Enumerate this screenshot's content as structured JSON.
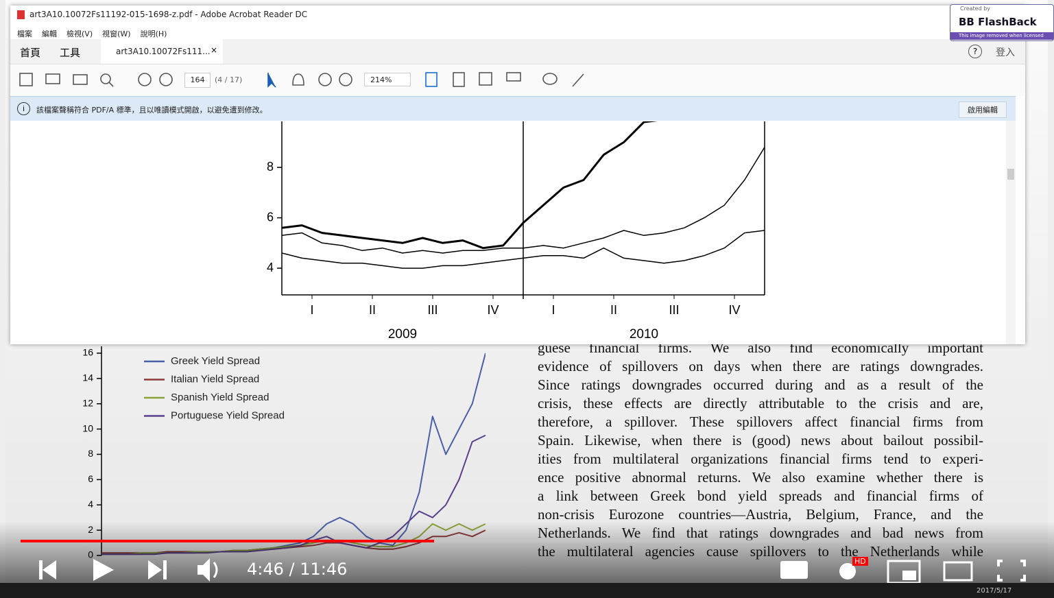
{
  "window": {
    "title": "art3A10.10072Fs11192-015-1698-z.pdf - Adobe Acrobat Reader DC",
    "menu": [
      "檔案",
      "編輯",
      "檢視(V)",
      "視窗(W)",
      "說明(H)"
    ],
    "tabs": [
      "首頁",
      "工具",
      "art3A10.10072Fs111..."
    ],
    "sign_in": "登入",
    "page_number": "164",
    "page_count": "(4 / 17)",
    "zoom": "214%",
    "notice": "該檔案聲稱符合 PDF/A 標準，且以唯讀模式開啟，以避免遭到修改。",
    "enable_editing": "啟用編輯"
  },
  "watermark": {
    "line1": "Created by",
    "brand": "BB FlashBack",
    "line2": "This image removed when licensed"
  },
  "document_lines": [
    "guese financial firms. We also find economically important",
    "evidence of spillovers on days when there are ratings downgrades.",
    "Since ratings downgrades occurred during and as a result of the",
    "crisis, these effects are directly attributable to the crisis and are,",
    "therefore, a spillover. These spillovers affect financial firms from",
    "Spain. Likewise, when there is (good) news about bailout possibil-",
    "ities from multilateral organizations financial firms tend to experi-",
    "ence positive abnormal returns. We also examine whether there is",
    "a link between Greek bond yield spreads and financial firms of",
    "non-crisis Eurozone countries—Austria, Belgium, France, and the",
    "Netherlands. We find that ratings downgrades and bad news from",
    "the multilateral agencies cause spillovers to the Netherlands while"
  ],
  "player": {
    "time": "4:46 / 11:46",
    "hd": "HD",
    "date": "2017/5/17"
  },
  "chart_data": [
    {
      "type": "line",
      "x": [
        0,
        1,
        2,
        3,
        4,
        5,
        6,
        7,
        8,
        9,
        10,
        11,
        12,
        13,
        14,
        15,
        16,
        17,
        18,
        19,
        20,
        21,
        22,
        23,
        24
      ],
      "xlim": [
        0,
        24
      ],
      "xticks": [
        {
          "value": 1.5,
          "label": "I"
        },
        {
          "value": 4.5,
          "label": "II"
        },
        {
          "value": 7.5,
          "label": "III"
        },
        {
          "value": 10.5,
          "label": "IV"
        },
        {
          "value": 13.5,
          "label": "I"
        },
        {
          "value": 16.5,
          "label": "II"
        },
        {
          "value": 19.5,
          "label": "III"
        },
        {
          "value": 22.5,
          "label": "IV"
        }
      ],
      "annotations": [
        {
          "text": "2009",
          "x": 6
        },
        {
          "text": "2010",
          "x": 18
        }
      ],
      "ylim": [
        2.94,
        9.5
      ],
      "yticks": [
        4,
        6,
        8
      ],
      "series": [
        {
          "color": "#000000",
          "linewidth": 3,
          "values": [
            5.6,
            5.7,
            5.4,
            5.3,
            5.2,
            5.1,
            5.0,
            5.2,
            5.0,
            5.1,
            4.8,
            4.9,
            5.8,
            6.5,
            7.2,
            7.5,
            8.5,
            9.0,
            9.8,
            9.9,
            9.9,
            9.9,
            9.9,
            9.9,
            9.9
          ]
        },
        {
          "color": "#000000",
          "linewidth": 1.5,
          "values": [
            5.3,
            5.4,
            5.0,
            4.9,
            4.7,
            4.8,
            4.6,
            4.7,
            4.6,
            4.7,
            4.7,
            4.8,
            4.8,
            4.9,
            4.8,
            5.0,
            5.2,
            5.5,
            5.3,
            5.4,
            5.6,
            6.0,
            6.5,
            7.5,
            8.8
          ]
        },
        {
          "color": "#000000",
          "linewidth": 1.5,
          "values": [
            4.6,
            4.4,
            4.3,
            4.2,
            4.2,
            4.1,
            4.0,
            4.0,
            4.1,
            4.1,
            4.2,
            4.3,
            4.4,
            4.5,
            4.5,
            4.4,
            4.8,
            4.4,
            4.3,
            4.2,
            4.3,
            4.5,
            4.8,
            5.4,
            5.5
          ]
        }
      ]
    },
    {
      "type": "line",
      "x": [
        0,
        1,
        2,
        3,
        4,
        5,
        6,
        7,
        8,
        9,
        10,
        11,
        12,
        13,
        14,
        15,
        16,
        17,
        18,
        19,
        20,
        21,
        22,
        23,
        24,
        25,
        26,
        27,
        28,
        29
      ],
      "xlim": [
        0,
        29
      ],
      "ylim": [
        0,
        16
      ],
      "yticks": [
        0,
        2,
        4,
        6,
        8,
        10,
        12,
        14,
        16
      ],
      "legend": "upper left",
      "series": [
        {
          "name": "Greek Yield Spread",
          "color": "#4a5fa8",
          "values": [
            0.1,
            0.1,
            0.1,
            0.1,
            0.2,
            0.2,
            0.2,
            0.2,
            0.3,
            0.3,
            0.3,
            0.4,
            0.5,
            0.6,
            0.8,
            1.0,
            1.5,
            2.5,
            3.0,
            2.5,
            1.5,
            1.0,
            0.8,
            2.0,
            5.0,
            11.0,
            8.0,
            10.0,
            12.0,
            16.0
          ]
        },
        {
          "name": "Italian Yield Spread",
          "color": "#8b3a3a",
          "values": [
            0.2,
            0.2,
            0.2,
            0.2,
            0.2,
            0.3,
            0.3,
            0.3,
            0.3,
            0.3,
            0.4,
            0.4,
            0.5,
            0.5,
            0.6,
            0.7,
            0.8,
            1.0,
            1.0,
            0.8,
            0.6,
            0.5,
            0.5,
            0.7,
            1.0,
            1.5,
            1.5,
            1.8,
            1.5,
            2.0
          ]
        },
        {
          "name": "Spanish Yield Spread",
          "color": "#8aa33a",
          "values": [
            0.1,
            0.1,
            0.1,
            0.2,
            0.2,
            0.2,
            0.2,
            0.3,
            0.3,
            0.3,
            0.4,
            0.4,
            0.5,
            0.6,
            0.7,
            0.8,
            1.0,
            1.2,
            1.2,
            1.0,
            0.8,
            0.7,
            0.7,
            1.0,
            1.5,
            2.5,
            2.0,
            2.5,
            2.0,
            2.5
          ]
        },
        {
          "name": "Portuguese Yield Spread",
          "color": "#5a3f8c",
          "values": [
            0.1,
            0.1,
            0.1,
            0.1,
            0.1,
            0.2,
            0.2,
            0.2,
            0.2,
            0.3,
            0.3,
            0.3,
            0.4,
            0.5,
            0.6,
            0.8,
            1.2,
            1.5,
            1.0,
            0.8,
            0.6,
            1.0,
            1.5,
            2.5,
            3.5,
            3.0,
            4.0,
            6.0,
            9.0,
            9.5
          ]
        }
      ]
    }
  ]
}
